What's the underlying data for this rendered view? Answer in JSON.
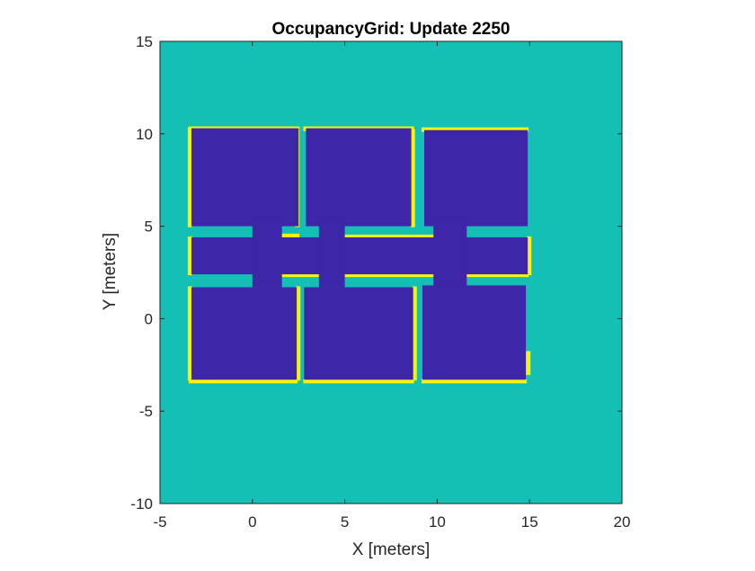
{
  "chart_data": {
    "type": "heatmap",
    "title": "OccupancyGrid: Update 2250",
    "xlabel": "X [meters]",
    "ylabel": "Y [meters]",
    "xlim": [
      -5,
      20
    ],
    "ylim": [
      -10,
      15
    ],
    "xticks": [
      -5,
      0,
      5,
      10,
      15,
      20
    ],
    "yticks": [
      -10,
      -5,
      0,
      5,
      10,
      15
    ],
    "colors": {
      "unknown": "#14bfb6",
      "free": "#3d26a8",
      "occupied": "#f9f20d"
    },
    "free_regions": [
      {
        "x0": -3.3,
        "x1": 2.5,
        "y0": 5.0,
        "y1": 10.3
      },
      {
        "x0": 2.9,
        "x1": 8.6,
        "y0": 5.0,
        "y1": 10.3
      },
      {
        "x0": 9.3,
        "x1": 14.9,
        "y0": 5.0,
        "y1": 10.2
      },
      {
        "x0": -3.3,
        "x1": 14.9,
        "y0": 2.4,
        "y1": 4.4
      },
      {
        "x0": 0.0,
        "x1": 1.6,
        "y0": 1.7,
        "y1": 5.2
      },
      {
        "x0": 3.6,
        "x1": 5.0,
        "y0": 1.7,
        "y1": 5.4
      },
      {
        "x0": 9.8,
        "x1": 11.6,
        "y0": 1.7,
        "y1": 5.2
      },
      {
        "x0": -3.3,
        "x1": 2.4,
        "y0": -3.3,
        "y1": 1.7
      },
      {
        "x0": 2.8,
        "x1": 8.7,
        "y0": -3.3,
        "y1": 1.7
      },
      {
        "x0": 9.2,
        "x1": 14.8,
        "y0": -3.3,
        "y1": 1.8
      }
    ],
    "occupied_edges": [
      {
        "x0": -3.4,
        "x1": 2.5,
        "y0": 10.2,
        "y1": 10.35
      },
      {
        "x0": 2.8,
        "x1": 8.7,
        "y0": 10.2,
        "y1": 10.35
      },
      {
        "x0": 9.2,
        "x1": 14.9,
        "y0": 10.15,
        "y1": 10.3
      },
      {
        "x0": -3.45,
        "x1": -3.3,
        "y0": 5.0,
        "y1": 10.3
      },
      {
        "x0": -3.45,
        "x1": -3.3,
        "y0": 2.4,
        "y1": 4.4
      },
      {
        "x0": -3.45,
        "x1": -3.3,
        "y0": -3.3,
        "y1": 1.7
      },
      {
        "x0": 14.9,
        "x1": 15.05,
        "y0": 2.4,
        "y1": 4.4
      },
      {
        "x0": 14.85,
        "x1": 15.0,
        "y0": -3.0,
        "y1": -1.8
      },
      {
        "x0": -3.4,
        "x1": 2.4,
        "y0": -3.45,
        "y1": -3.3
      },
      {
        "x0": 2.8,
        "x1": 8.7,
        "y0": -3.45,
        "y1": -3.3
      },
      {
        "x0": 9.2,
        "x1": 14.8,
        "y0": -3.45,
        "y1": -3.3
      },
      {
        "x0": 1.6,
        "x1": 2.5,
        "y0": 4.4,
        "y1": 4.55
      },
      {
        "x0": 5.0,
        "x1": 9.8,
        "y0": 4.4,
        "y1": 4.5
      },
      {
        "x0": 1.6,
        "x1": 3.6,
        "y0": 2.3,
        "y1": 2.4
      },
      {
        "x0": 5.0,
        "x1": 9.8,
        "y0": 2.3,
        "y1": 2.4
      },
      {
        "x0": 11.6,
        "x1": 14.9,
        "y0": 2.3,
        "y1": 2.4
      },
      {
        "x0": 2.35,
        "x1": 2.5,
        "y0": 5.0,
        "y1": 10.2
      },
      {
        "x0": 8.6,
        "x1": 8.75,
        "y0": 5.0,
        "y1": 10.2
      },
      {
        "x0": 2.4,
        "x1": 2.55,
        "y0": -3.3,
        "y1": 1.7
      },
      {
        "x0": 8.7,
        "x1": 8.85,
        "y0": -3.3,
        "y1": 1.7
      }
    ]
  }
}
